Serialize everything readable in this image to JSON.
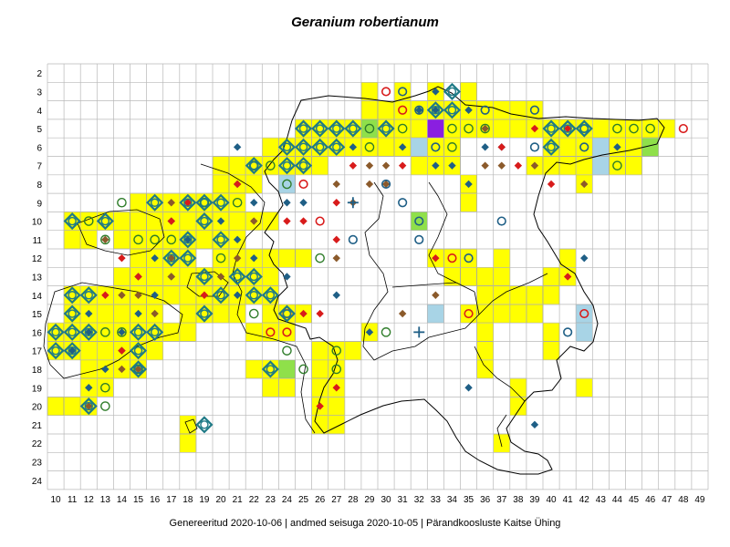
{
  "title": "Geranium robertianum",
  "footer": "Genereeritud 2020-10-06  |  andmed seisuga 2020-10-05  |  Pärandkoosluste Kaitse Ühing",
  "grid": {
    "columns": [
      "10",
      "11",
      "12",
      "13",
      "14",
      "15",
      "16",
      "17",
      "18",
      "19",
      "20",
      "21",
      "22",
      "23",
      "24",
      "25",
      "26",
      "27",
      "28",
      "29",
      "30",
      "31",
      "32",
      "33",
      "34",
      "35",
      "36",
      "37",
      "38",
      "39",
      "40",
      "41",
      "42",
      "43",
      "44",
      "45",
      "46",
      "47",
      "48",
      "49"
    ],
    "rows": [
      "2",
      "3",
      "4",
      "5",
      "6",
      "7",
      "8",
      "9",
      "10",
      "11",
      "12",
      "13",
      "14",
      "15",
      "16",
      "17",
      "18",
      "19",
      "20",
      "21",
      "22",
      "23",
      "24"
    ]
  },
  "colors": {
    "yellow": "#ffff00",
    "light_blue": "#a8d4e6",
    "green": "#8fe04a",
    "purple": "#8a1fe0",
    "navy_marker": "#1f5f86",
    "brown_marker": "#8b5a2b",
    "red_marker": "#d81b1b",
    "ring_teal": "#1f7a86",
    "grid_line": "#b8b8b8",
    "border_line": "#000000"
  },
  "cells": {
    "yellow": [
      [
        29,
        3
      ],
      [
        31,
        3
      ],
      [
        33,
        3
      ],
      [
        35,
        3
      ],
      [
        29,
        4
      ],
      [
        30,
        4
      ],
      [
        31,
        4
      ],
      [
        32,
        4
      ],
      [
        33,
        4
      ],
      [
        34,
        4
      ],
      [
        35,
        4
      ],
      [
        36,
        4
      ],
      [
        37,
        4
      ],
      [
        38,
        4
      ],
      [
        39,
        4
      ],
      [
        25,
        5
      ],
      [
        26,
        5
      ],
      [
        27,
        5
      ],
      [
        28,
        5
      ],
      [
        29,
        5
      ],
      [
        30,
        5
      ],
      [
        31,
        5
      ],
      [
        32,
        5
      ],
      [
        34,
        5
      ],
      [
        35,
        5
      ],
      [
        36,
        5
      ],
      [
        37,
        5
      ],
      [
        38,
        5
      ],
      [
        39,
        5
      ],
      [
        40,
        5
      ],
      [
        41,
        5
      ],
      [
        42,
        5
      ],
      [
        43,
        5
      ],
      [
        44,
        5
      ],
      [
        45,
        5
      ],
      [
        46,
        5
      ],
      [
        47,
        5
      ],
      [
        23,
        6
      ],
      [
        24,
        6
      ],
      [
        25,
        6
      ],
      [
        26,
        6
      ],
      [
        27,
        6
      ],
      [
        28,
        6
      ],
      [
        29,
        6
      ],
      [
        30,
        6
      ],
      [
        31,
        6
      ],
      [
        33,
        6
      ],
      [
        34,
        6
      ],
      [
        40,
        6
      ],
      [
        41,
        6
      ],
      [
        42,
        6
      ],
      [
        44,
        6
      ],
      [
        45,
        6
      ],
      [
        46,
        6
      ],
      [
        20,
        7
      ],
      [
        21,
        7
      ],
      [
        22,
        7
      ],
      [
        23,
        7
      ],
      [
        24,
        7
      ],
      [
        25,
        7
      ],
      [
        26,
        7
      ],
      [
        32,
        7
      ],
      [
        33,
        7
      ],
      [
        34,
        7
      ],
      [
        39,
        7
      ],
      [
        40,
        7
      ],
      [
        41,
        7
      ],
      [
        42,
        7
      ],
      [
        43,
        7
      ],
      [
        44,
        7
      ],
      [
        45,
        7
      ],
      [
        20,
        8
      ],
      [
        21,
        8
      ],
      [
        22,
        8
      ],
      [
        24,
        8
      ],
      [
        35,
        8
      ],
      [
        42,
        8
      ],
      [
        15,
        9
      ],
      [
        16,
        9
      ],
      [
        17,
        9
      ],
      [
        18,
        9
      ],
      [
        19,
        9
      ],
      [
        20,
        9
      ],
      [
        21,
        9
      ],
      [
        35,
        9
      ],
      [
        11,
        10
      ],
      [
        12,
        10
      ],
      [
        13,
        10
      ],
      [
        14,
        10
      ],
      [
        15,
        10
      ],
      [
        16,
        10
      ],
      [
        17,
        10
      ],
      [
        18,
        10
      ],
      [
        19,
        10
      ],
      [
        20,
        10
      ],
      [
        21,
        10
      ],
      [
        22,
        10
      ],
      [
        23,
        10
      ],
      [
        11,
        11
      ],
      [
        12,
        11
      ],
      [
        14,
        11
      ],
      [
        15,
        11
      ],
      [
        16,
        11
      ],
      [
        17,
        11
      ],
      [
        18,
        11
      ],
      [
        19,
        11
      ],
      [
        20,
        11
      ],
      [
        21,
        11
      ],
      [
        15,
        12
      ],
      [
        16,
        12
      ],
      [
        17,
        12
      ],
      [
        18,
        12
      ],
      [
        20,
        12
      ],
      [
        21,
        12
      ],
      [
        22,
        12
      ],
      [
        23,
        12
      ],
      [
        24,
        12
      ],
      [
        25,
        12
      ],
      [
        33,
        12
      ],
      [
        34,
        12
      ],
      [
        35,
        12
      ],
      [
        37,
        12
      ],
      [
        41,
        12
      ],
      [
        14,
        13
      ],
      [
        15,
        13
      ],
      [
        16,
        13
      ],
      [
        17,
        13
      ],
      [
        18,
        13
      ],
      [
        19,
        13
      ],
      [
        20,
        13
      ],
      [
        21,
        13
      ],
      [
        22,
        13
      ],
      [
        23,
        13
      ],
      [
        34,
        13
      ],
      [
        35,
        13
      ],
      [
        36,
        13
      ],
      [
        37,
        13
      ],
      [
        40,
        13
      ],
      [
        41,
        13
      ],
      [
        11,
        14
      ],
      [
        12,
        14
      ],
      [
        13,
        14
      ],
      [
        14,
        14
      ],
      [
        15,
        14
      ],
      [
        16,
        14
      ],
      [
        17,
        14
      ],
      [
        18,
        14
      ],
      [
        19,
        14
      ],
      [
        20,
        14
      ],
      [
        21,
        14
      ],
      [
        22,
        14
      ],
      [
        23,
        14
      ],
      [
        36,
        14
      ],
      [
        37,
        14
      ],
      [
        38,
        14
      ],
      [
        39,
        14
      ],
      [
        40,
        14
      ],
      [
        11,
        15
      ],
      [
        12,
        15
      ],
      [
        13,
        15
      ],
      [
        14,
        15
      ],
      [
        15,
        15
      ],
      [
        16,
        15
      ],
      [
        18,
        15
      ],
      [
        19,
        15
      ],
      [
        20,
        15
      ],
      [
        21,
        15
      ],
      [
        23,
        15
      ],
      [
        24,
        15
      ],
      [
        25,
        15
      ],
      [
        35,
        15
      ],
      [
        36,
        15
      ],
      [
        37,
        15
      ],
      [
        38,
        15
      ],
      [
        39,
        15
      ],
      [
        10,
        16
      ],
      [
        11,
        16
      ],
      [
        12,
        16
      ],
      [
        13,
        16
      ],
      [
        14,
        16
      ],
      [
        15,
        16
      ],
      [
        16,
        16
      ],
      [
        17,
        16
      ],
      [
        18,
        16
      ],
      [
        22,
        16
      ],
      [
        23,
        16
      ],
      [
        24,
        16
      ],
      [
        29,
        16
      ],
      [
        36,
        16
      ],
      [
        40,
        16
      ],
      [
        10,
        17
      ],
      [
        11,
        17
      ],
      [
        12,
        17
      ],
      [
        13,
        17
      ],
      [
        14,
        17
      ],
      [
        15,
        17
      ],
      [
        16,
        17
      ],
      [
        26,
        17
      ],
      [
        27,
        17
      ],
      [
        28,
        17
      ],
      [
        36,
        17
      ],
      [
        40,
        17
      ],
      [
        12,
        18
      ],
      [
        13,
        18
      ],
      [
        14,
        18
      ],
      [
        15,
        18
      ],
      [
        22,
        18
      ],
      [
        23,
        18
      ],
      [
        24,
        18
      ],
      [
        26,
        18
      ],
      [
        27,
        18
      ],
      [
        36,
        18
      ],
      [
        12,
        19
      ],
      [
        13,
        19
      ],
      [
        23,
        19
      ],
      [
        24,
        19
      ],
      [
        26,
        19
      ],
      [
        27,
        19
      ],
      [
        38,
        19
      ],
      [
        42,
        19
      ],
      [
        10,
        20
      ],
      [
        11,
        20
      ],
      [
        12,
        20
      ],
      [
        26,
        20
      ],
      [
        27,
        20
      ],
      [
        38,
        20
      ],
      [
        18,
        21
      ],
      [
        26,
        21
      ],
      [
        27,
        21
      ],
      [
        18,
        22
      ],
      [
        37,
        22
      ]
    ],
    "light_blue": [
      [
        24,
        8
      ],
      [
        32,
        6
      ],
      [
        43,
        6
      ],
      [
        43,
        7
      ],
      [
        33,
        15
      ],
      [
        42,
        15
      ],
      [
        42,
        16
      ]
    ],
    "green": [
      [
        32,
        10
      ],
      [
        24,
        18
      ],
      [
        46,
        6
      ],
      [
        29,
        5
      ]
    ],
    "purple": [
      [
        33,
        5
      ]
    ]
  },
  "markers": {
    "diamond_navy": [
      [
        33,
        3
      ],
      [
        32,
        4
      ],
      [
        33,
        4
      ],
      [
        35,
        4
      ],
      [
        21,
        6
      ],
      [
        31,
        6
      ],
      [
        36,
        6
      ],
      [
        28,
        6
      ],
      [
        33,
        7
      ],
      [
        35,
        8
      ],
      [
        21,
        8
      ],
      [
        22,
        9
      ],
      [
        17,
        10
      ],
      [
        20,
        10
      ],
      [
        18,
        11
      ],
      [
        16,
        12
      ],
      [
        15,
        13
      ],
      [
        17,
        13
      ],
      [
        15,
        15
      ],
      [
        12,
        16
      ],
      [
        11,
        17
      ],
      [
        14,
        17
      ],
      [
        13,
        18
      ],
      [
        12,
        19
      ],
      [
        21,
        14
      ],
      [
        27,
        14
      ],
      [
        24,
        13
      ],
      [
        16,
        14
      ],
      [
        24,
        9
      ],
      [
        22,
        12
      ],
      [
        39,
        21
      ],
      [
        35,
        19
      ],
      [
        29,
        16
      ],
      [
        42,
        12
      ],
      [
        37,
        6
      ],
      [
        44,
        6
      ],
      [
        34,
        7
      ],
      [
        25,
        9
      ],
      [
        12,
        15
      ],
      [
        14,
        16
      ],
      [
        21,
        11
      ]
    ],
    "diamond_brown": [
      [
        29,
        7
      ],
      [
        30,
        7
      ],
      [
        27,
        8
      ],
      [
        29,
        8
      ],
      [
        30,
        8
      ],
      [
        18,
        9
      ],
      [
        17,
        9
      ],
      [
        13,
        11
      ],
      [
        14,
        14
      ],
      [
        20,
        13
      ],
      [
        15,
        14
      ],
      [
        17,
        12
      ],
      [
        21,
        12
      ],
      [
        16,
        15
      ],
      [
        12,
        20
      ],
      [
        15,
        18
      ],
      [
        14,
        18
      ],
      [
        28,
        9
      ],
      [
        39,
        7
      ],
      [
        42,
        8
      ],
      [
        36,
        5
      ],
      [
        36,
        7
      ],
      [
        22,
        10
      ],
      [
        37,
        7
      ],
      [
        33,
        14
      ],
      [
        31,
        15
      ],
      [
        17,
        13
      ],
      [
        27,
        12
      ]
    ],
    "diamond_red": [
      [
        28,
        7
      ],
      [
        31,
        7
      ],
      [
        21,
        8
      ],
      [
        25,
        10
      ],
      [
        24,
        10
      ],
      [
        27,
        11
      ],
      [
        13,
        14
      ],
      [
        15,
        13
      ],
      [
        17,
        10
      ],
      [
        18,
        9
      ],
      [
        14,
        12
      ],
      [
        14,
        17
      ],
      [
        19,
        14
      ],
      [
        26,
        15
      ],
      [
        26,
        20
      ],
      [
        27,
        19
      ],
      [
        33,
        12
      ],
      [
        38,
        7
      ],
      [
        40,
        8
      ],
      [
        41,
        13
      ],
      [
        39,
        5
      ],
      [
        41,
        5
      ],
      [
        37,
        6
      ],
      [
        27,
        9
      ],
      [
        25,
        15
      ]
    ],
    "circle_navy": [
      [
        31,
        3
      ],
      [
        33,
        6
      ],
      [
        30,
        8
      ],
      [
        31,
        9
      ],
      [
        32,
        10
      ],
      [
        32,
        11
      ],
      [
        28,
        11
      ],
      [
        37,
        10
      ],
      [
        39,
        6
      ],
      [
        42,
        5
      ],
      [
        42,
        6
      ],
      [
        41,
        16
      ],
      [
        35,
        12
      ],
      [
        36,
        4
      ],
      [
        32,
        4
      ],
      [
        39,
        4
      ]
    ],
    "circle_red": [
      [
        30,
        3
      ],
      [
        31,
        4
      ],
      [
        25,
        8
      ],
      [
        26,
        10
      ],
      [
        24,
        15
      ],
      [
        24,
        16
      ],
      [
        35,
        15
      ],
      [
        34,
        12
      ],
      [
        42,
        15
      ],
      [
        48,
        5
      ],
      [
        23,
        16
      ]
    ],
    "circle_green_ring": [
      [
        12,
        10
      ],
      [
        13,
        11
      ],
      [
        15,
        11
      ],
      [
        16,
        11
      ],
      [
        17,
        11
      ],
      [
        14,
        9
      ],
      [
        19,
        9
      ],
      [
        21,
        9
      ],
      [
        20,
        12
      ],
      [
        22,
        7
      ],
      [
        23,
        7
      ],
      [
        24,
        8
      ],
      [
        29,
        6
      ],
      [
        35,
        5
      ],
      [
        36,
        5
      ],
      [
        44,
        5
      ],
      [
        45,
        5
      ],
      [
        46,
        5
      ],
      [
        34,
        6
      ],
      [
        44,
        7
      ],
      [
        26,
        12
      ],
      [
        13,
        16
      ],
      [
        14,
        16
      ],
      [
        15,
        18
      ],
      [
        22,
        15
      ],
      [
        13,
        20
      ],
      [
        27,
        17
      ],
      [
        27,
        18
      ],
      [
        30,
        16
      ],
      [
        13,
        19
      ],
      [
        29,
        5
      ],
      [
        31,
        5
      ],
      [
        25,
        18
      ],
      [
        24,
        17
      ],
      [
        34,
        5
      ]
    ],
    "ring_diamond": [
      [
        11,
        10
      ],
      [
        13,
        10
      ],
      [
        16,
        9
      ],
      [
        18,
        9
      ],
      [
        19,
        9
      ],
      [
        20,
        9
      ],
      [
        19,
        10
      ],
      [
        18,
        11
      ],
      [
        20,
        11
      ],
      [
        18,
        12
      ],
      [
        17,
        12
      ],
      [
        19,
        13
      ],
      [
        22,
        13
      ],
      [
        24,
        7
      ],
      [
        25,
        7
      ],
      [
        22,
        7
      ],
      [
        24,
        6
      ],
      [
        25,
        6
      ],
      [
        26,
        6
      ],
      [
        27,
        6
      ],
      [
        25,
        5
      ],
      [
        26,
        5
      ],
      [
        27,
        5
      ],
      [
        28,
        5
      ],
      [
        30,
        5
      ],
      [
        33,
        4
      ],
      [
        34,
        4
      ],
      [
        34,
        3
      ],
      [
        23,
        14
      ],
      [
        22,
        14
      ],
      [
        21,
        13
      ],
      [
        11,
        14
      ],
      [
        12,
        14
      ],
      [
        11,
        15
      ],
      [
        10,
        16
      ],
      [
        11,
        16
      ],
      [
        10,
        17
      ],
      [
        11,
        17
      ],
      [
        12,
        16
      ],
      [
        12,
        20
      ],
      [
        15,
        17
      ],
      [
        16,
        16
      ],
      [
        24,
        15
      ],
      [
        23,
        18
      ],
      [
        15,
        18
      ],
      [
        19,
        21
      ],
      [
        40,
        5
      ],
      [
        40,
        6
      ],
      [
        41,
        5
      ],
      [
        42,
        5
      ],
      [
        20,
        14
      ],
      [
        15,
        16
      ],
      [
        19,
        15
      ]
    ],
    "plus_navy": [
      [
        28,
        9
      ],
      [
        32,
        16
      ]
    ]
  }
}
